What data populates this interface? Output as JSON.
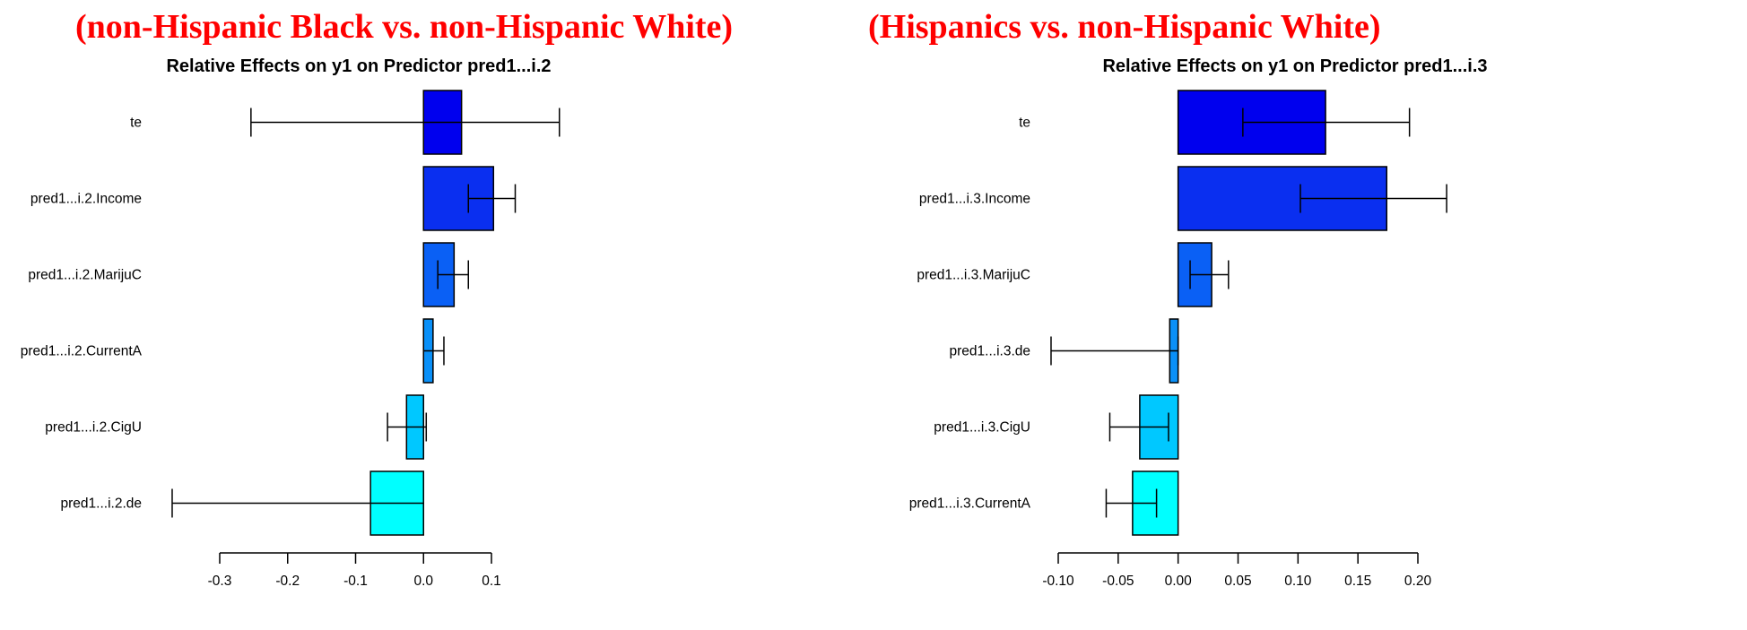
{
  "headings": {
    "left": "(non-Hispanic Black vs. non-Hispanic White)",
    "right": "(Hispanics vs. non-Hispanic White)"
  },
  "chart_data": [
    {
      "type": "bar",
      "orientation": "horizontal",
      "title": "Relative Effects on y1 on Predictor pred1...i.2",
      "xlabel": "",
      "ylabel": "",
      "xlim": [
        -0.3,
        0.1
      ],
      "xticks": [
        -0.3,
        -0.2,
        -0.1,
        0.0,
        0.1
      ],
      "xtick_labels": [
        "-0.3",
        "-0.2",
        "-0.1",
        "0.0",
        "0.1"
      ],
      "categories": [
        "te",
        "pred1...i.2.Income",
        "pred1...i.2.MarijuC",
        "pred1...i.2.CurrentA",
        "pred1...i.2.CigU",
        "pred1...i.2.de"
      ],
      "values": [
        0.056,
        0.103,
        0.045,
        0.014,
        -0.025,
        -0.078
      ],
      "ci_lower": [
        -0.254,
        0.066,
        0.021,
        0.0,
        -0.053,
        -0.37
      ],
      "ci_upper": [
        0.2,
        0.135,
        0.066,
        0.03,
        0.004,
        0.0
      ],
      "colors": [
        "#0000ee",
        "#0a2ff0",
        "#0a60f5",
        "#0a90f8",
        "#00c8ff",
        "#00ffff"
      ],
      "grid": false
    },
    {
      "type": "bar",
      "orientation": "horizontal",
      "title": "Relative Effects on y1 on Predictor pred1...i.3",
      "xlabel": "",
      "ylabel": "",
      "xlim": [
        -0.1,
        0.2
      ],
      "xticks": [
        -0.1,
        -0.05,
        0.0,
        0.05,
        0.1,
        0.15,
        0.2
      ],
      "xtick_labels": [
        "-0.10",
        "-0.05",
        "0.00",
        "0.05",
        "0.10",
        "0.15",
        "0.20"
      ],
      "categories": [
        "te",
        "pred1...i.3.Income",
        "pred1...i.3.MarijuC",
        "pred1...i.3.de",
        "pred1...i.3.CigU",
        "pred1...i.3.CurrentA"
      ],
      "values": [
        0.123,
        0.174,
        0.028,
        -0.007,
        -0.032,
        -0.038
      ],
      "ci_lower": [
        0.054,
        0.102,
        0.01,
        -0.106,
        -0.057,
        -0.06
      ],
      "ci_upper": [
        0.193,
        0.224,
        0.042,
        0.0,
        -0.008,
        -0.018
      ],
      "colors": [
        "#0000ee",
        "#0a2ff0",
        "#0a60f5",
        "#0a90f8",
        "#00c8ff",
        "#00ffff"
      ],
      "grid": false
    }
  ]
}
